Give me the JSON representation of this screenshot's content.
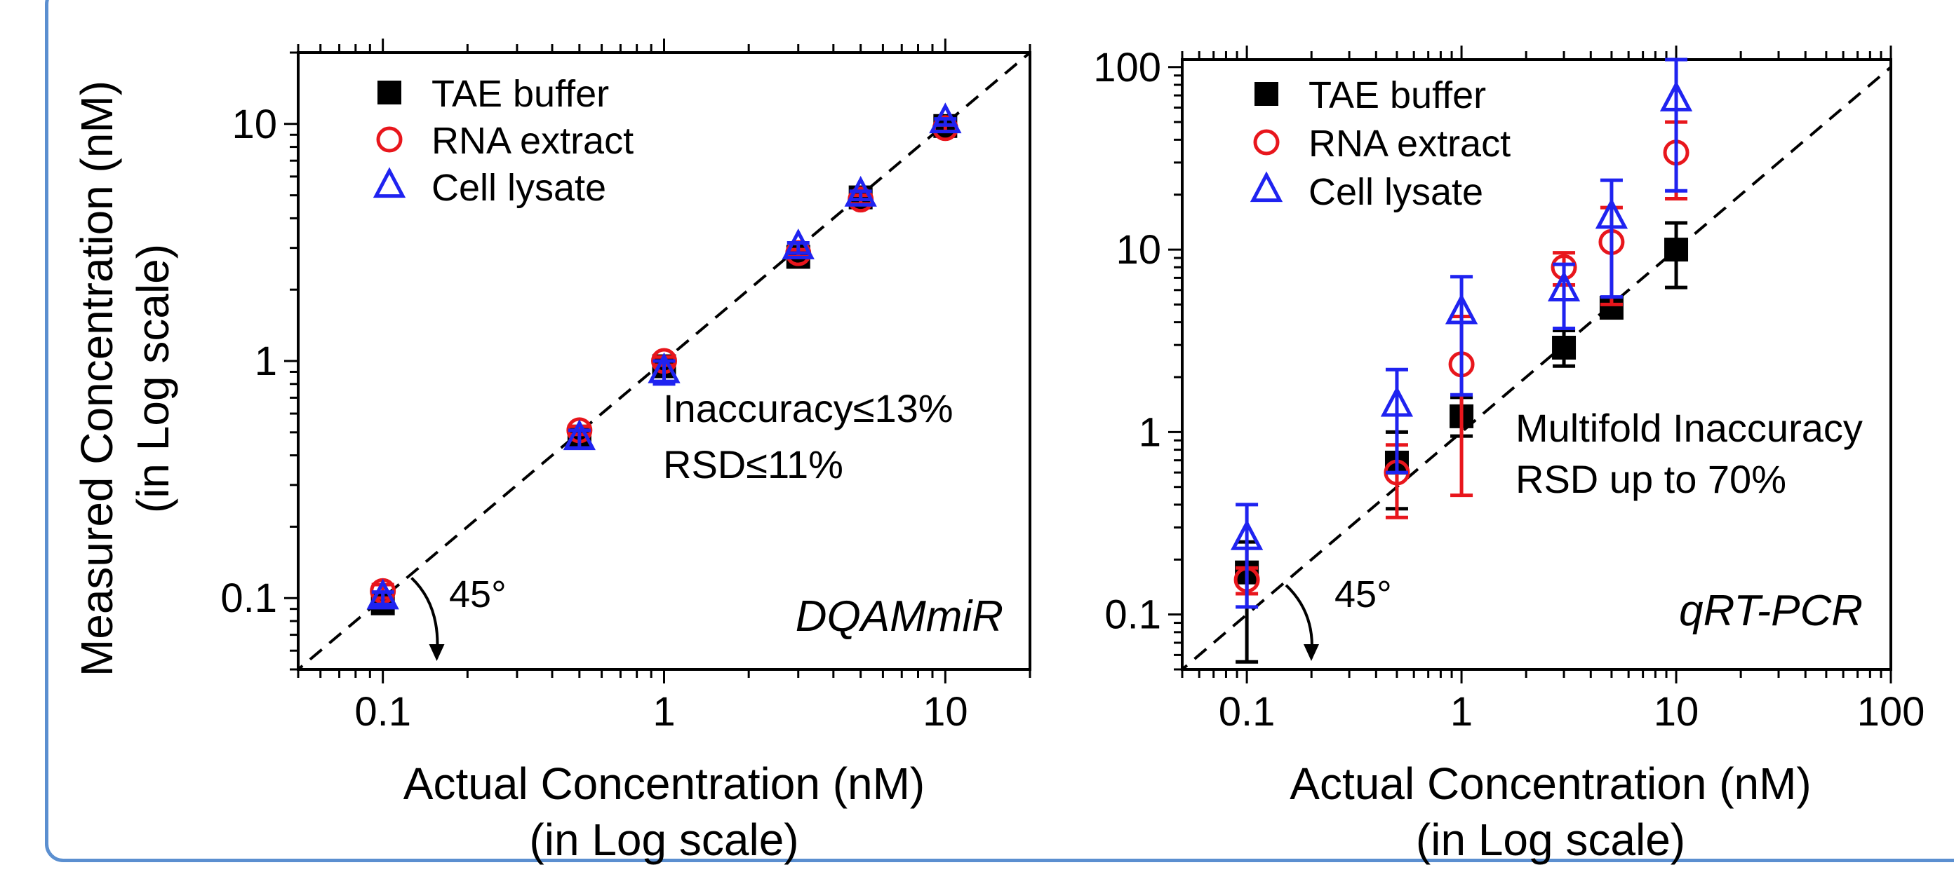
{
  "y_axis_label": [
    "Measured Concentration (nM)",
    "(in Log scale)"
  ],
  "chart_data": [
    {
      "type": "scatter",
      "panel_label": "DQAMmiR",
      "xlabel": [
        "Actual Concentration (nM)",
        "(in Log scale)"
      ],
      "ylabel": [
        "Measured Concentration (nM)",
        "(in Log scale)"
      ],
      "x_scale": "log",
      "y_scale": "log",
      "xlim": [
        0.05,
        20
      ],
      "ylim": [
        0.05,
        20
      ],
      "x_ticks": [
        {
          "v": 0.1,
          "label": "0.1"
        },
        {
          "v": 1,
          "label": "1"
        },
        {
          "v": 10,
          "label": "10"
        }
      ],
      "y_ticks": [
        {
          "v": 0.1,
          "label": "0.1"
        },
        {
          "v": 1,
          "label": "1"
        },
        {
          "v": 10,
          "label": "10"
        }
      ],
      "legend_position": "top-left",
      "series": [
        {
          "name": "TAE buffer",
          "marker": "filled-square",
          "color": "#000000",
          "points": [
            {
              "x": 0.1,
              "y": 0.095,
              "lo": 0.088,
              "hi": 0.102
            },
            {
              "x": 0.5,
              "y": 0.48,
              "lo": 0.46,
              "hi": 0.5
            },
            {
              "x": 1,
              "y": 0.95,
              "lo": 0.9,
              "hi": 1.0
            },
            {
              "x": 3,
              "y": 2.75,
              "lo": 2.65,
              "hi": 2.85
            },
            {
              "x": 5,
              "y": 4.9,
              "lo": 4.7,
              "hi": 5.1
            },
            {
              "x": 10,
              "y": 9.8,
              "lo": 9.5,
              "hi": 10.1
            }
          ]
        },
        {
          "name": "RNA extract",
          "marker": "open-circle",
          "color": "#e8161c",
          "points": [
            {
              "x": 0.1,
              "y": 0.107,
              "lo": 0.1,
              "hi": 0.114
            },
            {
              "x": 0.5,
              "y": 0.51,
              "lo": 0.49,
              "hi": 0.53
            },
            {
              "x": 1,
              "y": 1.0,
              "lo": 0.96,
              "hi": 1.04
            },
            {
              "x": 3,
              "y": 2.85,
              "lo": 2.75,
              "hi": 2.95
            },
            {
              "x": 5,
              "y": 4.8,
              "lo": 4.6,
              "hi": 5.0
            },
            {
              "x": 10,
              "y": 9.6,
              "lo": 9.3,
              "hi": 9.9
            }
          ]
        },
        {
          "name": "Cell lysate",
          "marker": "open-triangle",
          "color": "#1f23f0",
          "points": [
            {
              "x": 0.1,
              "y": 0.1,
              "lo": 0.094,
              "hi": 0.106
            },
            {
              "x": 0.5,
              "y": 0.47,
              "lo": 0.43,
              "hi": 0.51
            },
            {
              "x": 1,
              "y": 0.9,
              "lo": 0.8,
              "hi": 1.0
            },
            {
              "x": 3,
              "y": 3.0,
              "lo": 2.85,
              "hi": 3.15
            },
            {
              "x": 5,
              "y": 5.0,
              "lo": 4.8,
              "hi": 5.2
            },
            {
              "x": 10,
              "y": 10.2,
              "lo": 9.9,
              "hi": 10.5
            }
          ]
        }
      ],
      "annotations": {
        "text_lines": [
          "Inaccuracy≤13%",
          "RSD≤11%"
        ],
        "angle_label": "45°"
      }
    },
    {
      "type": "scatter",
      "panel_label": "qRT-PCR",
      "xlabel": [
        "Actual Concentration (nM)",
        "(in Log scale)"
      ],
      "ylabel": [],
      "x_scale": "log",
      "y_scale": "log",
      "xlim": [
        0.05,
        100
      ],
      "ylim": [
        0.05,
        110
      ],
      "x_ticks": [
        {
          "v": 0.1,
          "label": "0.1"
        },
        {
          "v": 1,
          "label": "1"
        },
        {
          "v": 10,
          "label": "10"
        },
        {
          "v": 100,
          "label": "100"
        }
      ],
      "y_ticks": [
        {
          "v": 0.1,
          "label": "0.1"
        },
        {
          "v": 1,
          "label": "1"
        },
        {
          "v": 10,
          "label": "10"
        },
        {
          "v": 100,
          "label": "100"
        }
      ],
      "legend_position": "top-left",
      "series": [
        {
          "name": "TAE buffer",
          "marker": "filled-square",
          "color": "#000000",
          "points": [
            {
              "x": 0.1,
              "y": 0.17,
              "lo": 0.055,
              "hi": 0.25
            },
            {
              "x": 0.5,
              "y": 0.68,
              "lo": 0.38,
              "hi": 1.0
            },
            {
              "x": 1,
              "y": 1.22,
              "lo": 0.95,
              "hi": 1.55
            },
            {
              "x": 3,
              "y": 2.9,
              "lo": 2.3,
              "hi": 3.6
            },
            {
              "x": 5,
              "y": 4.8,
              "lo": 4.5,
              "hi": 5.1
            },
            {
              "x": 10,
              "y": 10.0,
              "lo": 6.2,
              "hi": 14.0
            }
          ]
        },
        {
          "name": "RNA extract",
          "marker": "open-circle",
          "color": "#e8161c",
          "points": [
            {
              "x": 0.1,
              "y": 0.155,
              "lo": 0.13,
              "hi": 0.18
            },
            {
              "x": 0.5,
              "y": 0.6,
              "lo": 0.34,
              "hi": 0.85
            },
            {
              "x": 1,
              "y": 2.35,
              "lo": 0.45,
              "hi": 4.3
            },
            {
              "x": 3,
              "y": 8.0,
              "lo": 6.4,
              "hi": 9.6
            },
            {
              "x": 5,
              "y": 11.0,
              "lo": 5.0,
              "hi": 17.0
            },
            {
              "x": 10,
              "y": 34.0,
              "lo": 19.0,
              "hi": 50.0
            }
          ]
        },
        {
          "name": "Cell lysate",
          "marker": "open-triangle",
          "color": "#1f23f0",
          "points": [
            {
              "x": 0.1,
              "y": 0.26,
              "lo": 0.11,
              "hi": 0.4
            },
            {
              "x": 0.5,
              "y": 1.4,
              "lo": 0.6,
              "hi": 2.2
            },
            {
              "x": 1,
              "y": 4.5,
              "lo": 1.6,
              "hi": 7.1
            },
            {
              "x": 3,
              "y": 6.0,
              "lo": 3.7,
              "hi": 8.3
            },
            {
              "x": 5,
              "y": 15.0,
              "lo": 5.5,
              "hi": 24.0
            },
            {
              "x": 10,
              "y": 66.0,
              "lo": 21.0,
              "hi": 110.0
            }
          ]
        }
      ],
      "annotations": {
        "text_lines": [
          "Multifold Inaccuracy",
          "RSD up to 70%"
        ],
        "angle_label": "45°"
      }
    }
  ]
}
